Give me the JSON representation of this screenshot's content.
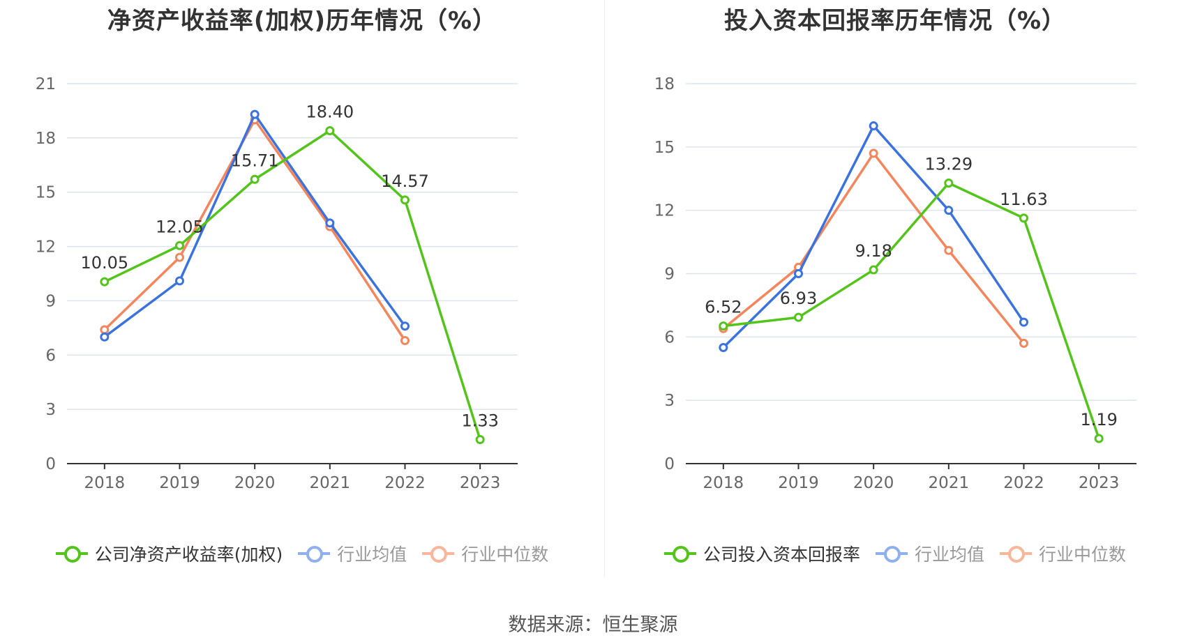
{
  "colors": {
    "company": "#52c41a",
    "average": "#3a72e0",
    "median": "#f5855a",
    "grid": "#dde3ef",
    "axis": "#333333"
  },
  "source": "数据来源：恒生聚源",
  "chart_data": [
    {
      "type": "line",
      "title": "净资产收益率(加权)历年情况（%）",
      "categories": [
        "2018",
        "2019",
        "2020",
        "2021",
        "2022",
        "2023"
      ],
      "yticks": [
        "0",
        "3",
        "6",
        "9",
        "12",
        "15",
        "18",
        "21"
      ],
      "ylim": [
        0,
        21
      ],
      "grid": true,
      "legend_position": "bottom",
      "series": [
        {
          "name": "公司净资产收益率(加权)",
          "values": [
            10.05,
            12.05,
            15.71,
            18.4,
            14.57,
            1.33
          ],
          "labels": [
            "10.05",
            "12.05",
            "15.71",
            "18.40",
            "14.57",
            "1.33"
          ]
        },
        {
          "name": "行业均值",
          "values": [
            7.0,
            10.1,
            19.3,
            13.3,
            7.6,
            null
          ]
        },
        {
          "name": "行业中位数",
          "values": [
            7.4,
            11.4,
            19.0,
            13.1,
            6.8,
            null
          ]
        }
      ]
    },
    {
      "type": "line",
      "title": "投入资本回报率历年情况（%）",
      "categories": [
        "2018",
        "2019",
        "2020",
        "2021",
        "2022",
        "2023"
      ],
      "yticks": [
        "0",
        "3",
        "6",
        "9",
        "12",
        "15",
        "18"
      ],
      "ylim": [
        0,
        18
      ],
      "grid": true,
      "legend_position": "bottom",
      "series": [
        {
          "name": "公司投入资本回报率",
          "values": [
            6.52,
            6.93,
            9.18,
            13.29,
            11.63,
            1.19
          ],
          "labels": [
            "6.52",
            "6.93",
            "9.18",
            "13.29",
            "11.63",
            "1.19"
          ]
        },
        {
          "name": "行业均值",
          "values": [
            5.5,
            9.0,
            16.0,
            12.0,
            6.7,
            null
          ]
        },
        {
          "name": "行业中位数",
          "values": [
            6.4,
            9.3,
            14.7,
            10.1,
            5.7,
            null
          ]
        }
      ]
    }
  ]
}
